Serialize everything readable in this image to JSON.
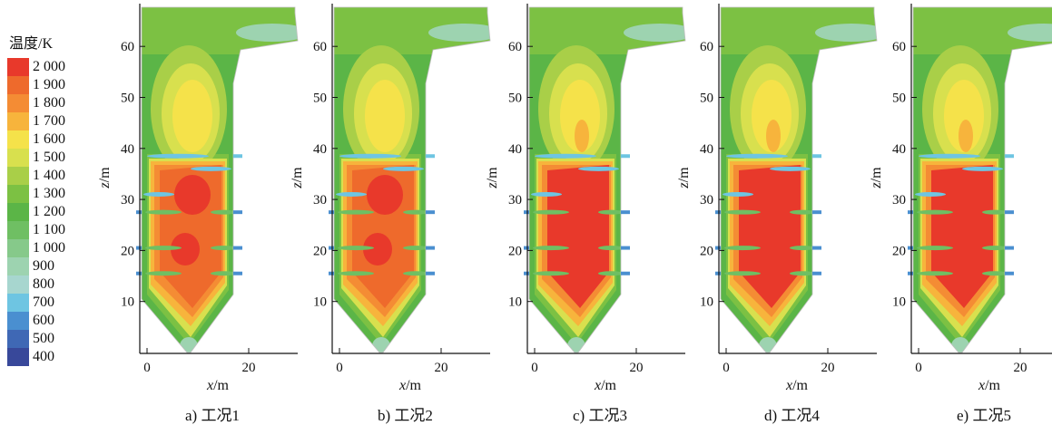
{
  "legend": {
    "title": "温度/K",
    "items": [
      {
        "label": "2 000",
        "color": "#e8392b"
      },
      {
        "label": "1 900",
        "color": "#ee6a2c"
      },
      {
        "label": "1 800",
        "color": "#f48c34"
      },
      {
        "label": "1 700",
        "color": "#f7b43c"
      },
      {
        "label": "1 600",
        "color": "#f5e24a"
      },
      {
        "label": "1 500",
        "color": "#d8e04e"
      },
      {
        "label": "1 400",
        "color": "#a9cf48"
      },
      {
        "label": "1 300",
        "color": "#7cc143"
      },
      {
        "label": "1 200",
        "color": "#5bb547"
      },
      {
        "label": "1 100",
        "color": "#6fbf63"
      },
      {
        "label": "1 000",
        "color": "#86c98a"
      },
      {
        "label": "900",
        "color": "#9dd3b0"
      },
      {
        "label": "800",
        "color": "#a7d6cf"
      },
      {
        "label": "700",
        "color": "#6ec5e2"
      },
      {
        "label": "600",
        "color": "#4a8fd0"
      },
      {
        "label": "500",
        "color": "#3f68b5"
      },
      {
        "label": "400",
        "color": "#38489a"
      }
    ]
  },
  "axes": {
    "z_label_var": "z",
    "z_label_unit": "/m",
    "x_label_var": "x",
    "x_label_unit": "/m",
    "z_ticks": [
      "10",
      "20",
      "30",
      "40",
      "50",
      "60"
    ],
    "x_ticks": [
      "0",
      "20"
    ]
  },
  "panels": [
    {
      "caption": "a) 工况1",
      "case": "1"
    },
    {
      "caption": "b) 工况2",
      "case": "2"
    },
    {
      "caption": "c) 工况3",
      "case": "3"
    },
    {
      "caption": "d) 工况4",
      "case": "4"
    },
    {
      "caption": "e) 工况5",
      "case": "5"
    }
  ]
}
